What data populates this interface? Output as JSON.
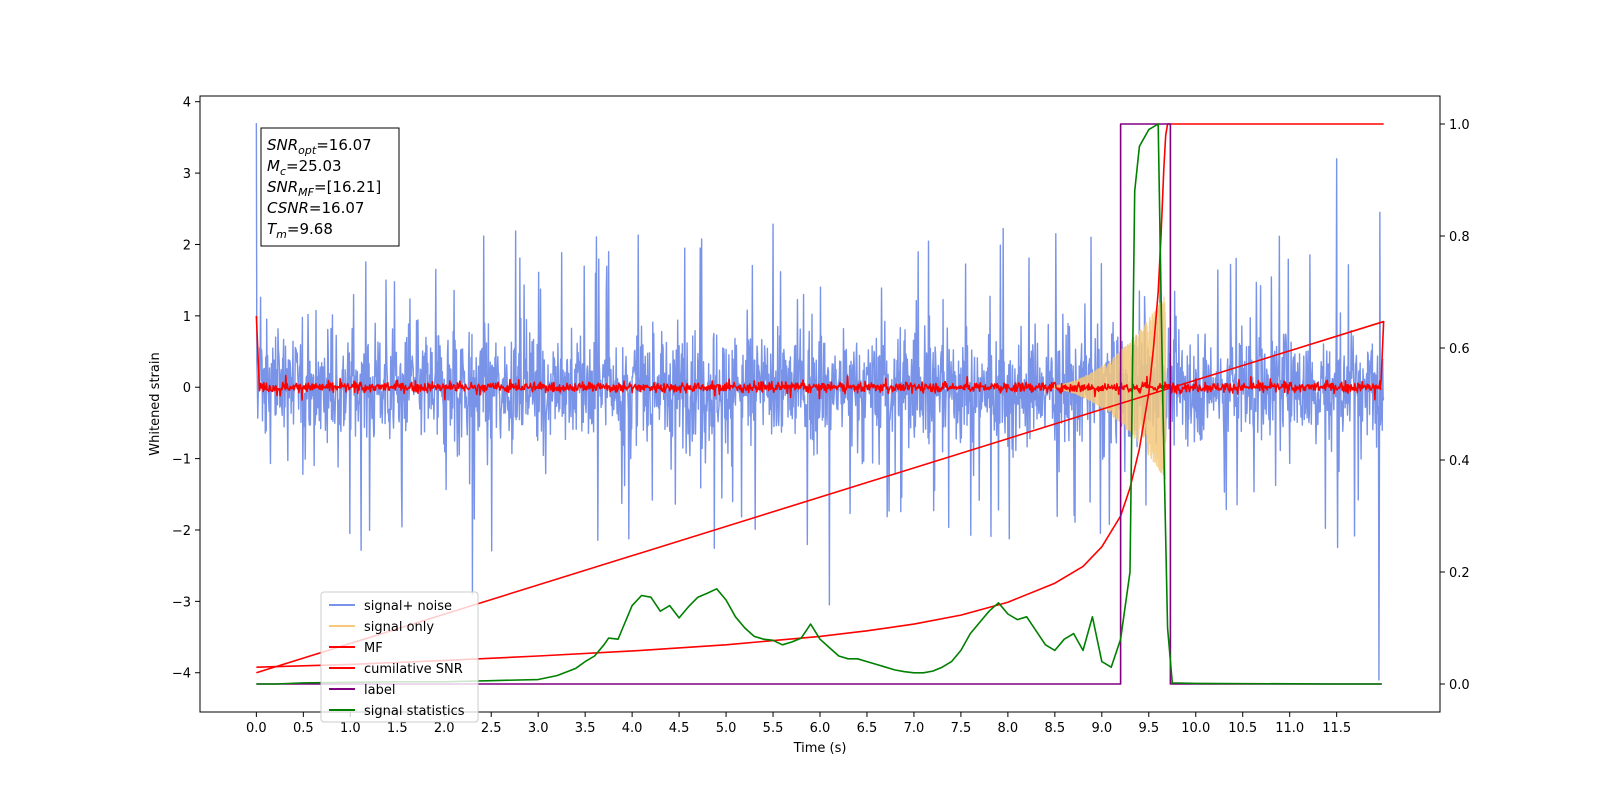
{
  "chart_data": {
    "type": "line",
    "xlabel": "Time (s)",
    "ylabel": "Whitened strain",
    "xlim": [
      -0.6,
      12.6
    ],
    "ylim": [
      -4.55,
      4.08
    ],
    "y2lim": [
      -0.05,
      1.05
    ],
    "xticks": [
      0.0,
      0.5,
      1.0,
      1.5,
      2.0,
      2.5,
      3.0,
      3.5,
      4.0,
      4.5,
      5.0,
      5.5,
      6.0,
      6.5,
      7.0,
      7.5,
      8.0,
      8.5,
      9.0,
      9.5,
      10.0,
      10.5,
      11.0,
      11.5
    ],
    "xtick_labels": [
      "0.0",
      "0.5",
      "1.0",
      "1.5",
      "2.0",
      "2.5",
      "3.0",
      "3.5",
      "4.0",
      "4.5",
      "5.0",
      "5.5",
      "6.0",
      "6.5",
      "7.0",
      "7.5",
      "8.0",
      "8.5",
      "9.0",
      "9.5",
      "10.0",
      "10.5",
      "11.0",
      "11.5"
    ],
    "yticks": [
      4,
      3,
      2,
      1,
      0,
      -1,
      -2,
      -3,
      -4
    ],
    "ytick_labels": [
      "4",
      "3",
      "2",
      "1",
      "0",
      "−1",
      "−2",
      "−3",
      "−4"
    ],
    "y2ticks": [
      1.0,
      0.8,
      0.6,
      0.4,
      0.2,
      0.0
    ],
    "y2tick_labels": [
      "1.0",
      "0.8",
      "0.6",
      "0.4",
      "0.2",
      "0.0"
    ],
    "legend_position": "lower-left",
    "legend": [
      {
        "label": "signal+ noise",
        "color": "#7893e8"
      },
      {
        "label": "signal only",
        "color": "#f5c87a"
      },
      {
        "label": "MF",
        "color": "#ff0000"
      },
      {
        "label": "cumilative SNR",
        "color": "#ff0000"
      },
      {
        "label": "label",
        "color": "#800080"
      },
      {
        "label": "signal statistics",
        "color": "#008000"
      }
    ],
    "annotation": [
      {
        "sym": "SNR",
        "sub": "opt",
        "val": "=16.07"
      },
      {
        "sym": "M",
        "sub": "c",
        "val": "=25.03"
      },
      {
        "sym": "SNR",
        "sub": "MF",
        "val": "=[16.21]"
      },
      {
        "sym": "CSNR",
        "sub": "",
        "val": "=16.07"
      },
      {
        "sym": "T",
        "sub": "m",
        "val": "=9.68"
      }
    ],
    "series": [
      {
        "name": "signal+ noise",
        "axis": "left",
        "color": "#7893e8",
        "style": "noise",
        "x_range": [
          0.0,
          12.0
        ],
        "envelope_low": [
          -1.6,
          -1.9
        ],
        "envelope_high": [
          1.5,
          1.9
        ],
        "peak_max": 3.7,
        "peak_min": -4.1,
        "spikes": [
          [
            0.0,
            3.7
          ],
          [
            11.5,
            3.2
          ],
          [
            2.3,
            -2.9
          ],
          [
            6.1,
            -3.05
          ],
          [
            11.95,
            -4.1
          ],
          [
            11.96,
            2.45
          ]
        ]
      },
      {
        "name": "signal only",
        "axis": "left",
        "color": "#f5c87a",
        "style": "chirp",
        "x_range": [
          8.3,
          9.68
        ],
        "peak_amplitude": 1.3
      },
      {
        "name": "MF",
        "axis": "left",
        "color": "#ff0000",
        "style": "filter",
        "x_range": [
          0.0,
          12.0
        ],
        "band": 0.08,
        "edge_values": [
          [
            0.0,
            1.0
          ],
          [
            12.0,
            0.92
          ]
        ]
      },
      {
        "name": "cumilative SNR",
        "axis": "right",
        "color": "#ff0000",
        "x": [
          0.0,
          1.0,
          2.0,
          3.0,
          4.0,
          5.0,
          6.0,
          6.5,
          7.0,
          7.5,
          8.0,
          8.5,
          8.8,
          9.0,
          9.2,
          9.3,
          9.4,
          9.5,
          9.55,
          9.6,
          9.63,
          9.66,
          9.68,
          9.7,
          12.0
        ],
        "values": [
          0.03,
          0.035,
          0.042,
          0.05,
          0.059,
          0.07,
          0.085,
          0.095,
          0.107,
          0.123,
          0.146,
          0.18,
          0.21,
          0.245,
          0.3,
          0.35,
          0.42,
          0.52,
          0.6,
          0.7,
          0.8,
          0.92,
          0.98,
          1.0,
          1.0
        ]
      },
      {
        "name": "label",
        "axis": "right",
        "color": "#800080",
        "x": [
          0.0,
          9.2,
          9.2,
          9.73,
          9.73,
          11.98
        ],
        "values": [
          0.0,
          0.0,
          1.0,
          1.0,
          0.0,
          0.0
        ]
      },
      {
        "name": "signal statistics",
        "axis": "right",
        "color": "#008000",
        "x": [
          0.0,
          0.2,
          0.5,
          1.0,
          1.5,
          2.0,
          2.5,
          3.0,
          3.2,
          3.4,
          3.5,
          3.6,
          3.7,
          3.75,
          3.85,
          3.9,
          4.0,
          4.1,
          4.2,
          4.3,
          4.4,
          4.5,
          4.6,
          4.7,
          4.8,
          4.9,
          5.0,
          5.1,
          5.2,
          5.3,
          5.4,
          5.5,
          5.6,
          5.7,
          5.8,
          5.9,
          6.0,
          6.1,
          6.2,
          6.3,
          6.4,
          6.5,
          6.6,
          6.7,
          6.8,
          6.9,
          7.0,
          7.1,
          7.2,
          7.3,
          7.4,
          7.5,
          7.6,
          7.7,
          7.8,
          7.9,
          8.0,
          8.1,
          8.2,
          8.3,
          8.4,
          8.5,
          8.6,
          8.7,
          8.8,
          8.9,
          9.0,
          9.1,
          9.2,
          9.3,
          9.35,
          9.4,
          9.5,
          9.6,
          9.65,
          9.7,
          9.75,
          10.0,
          11.5,
          11.98
        ],
        "values": [
          0.0,
          0.0,
          0.002,
          0.003,
          0.004,
          0.004,
          0.006,
          0.008,
          0.015,
          0.028,
          0.04,
          0.05,
          0.07,
          0.082,
          0.08,
          0.1,
          0.14,
          0.158,
          0.155,
          0.13,
          0.14,
          0.118,
          0.138,
          0.155,
          0.162,
          0.17,
          0.15,
          0.12,
          0.1,
          0.085,
          0.08,
          0.078,
          0.07,
          0.075,
          0.082,
          0.107,
          0.08,
          0.065,
          0.05,
          0.045,
          0.045,
          0.04,
          0.035,
          0.03,
          0.025,
          0.022,
          0.02,
          0.02,
          0.023,
          0.03,
          0.04,
          0.06,
          0.09,
          0.11,
          0.13,
          0.145,
          0.125,
          0.115,
          0.12,
          0.095,
          0.07,
          0.06,
          0.08,
          0.09,
          0.06,
          0.12,
          0.04,
          0.03,
          0.08,
          0.2,
          0.88,
          0.96,
          0.99,
          1.0,
          0.5,
          0.1,
          0.002,
          0.001,
          0.0,
          0.0
        ]
      }
    ]
  }
}
